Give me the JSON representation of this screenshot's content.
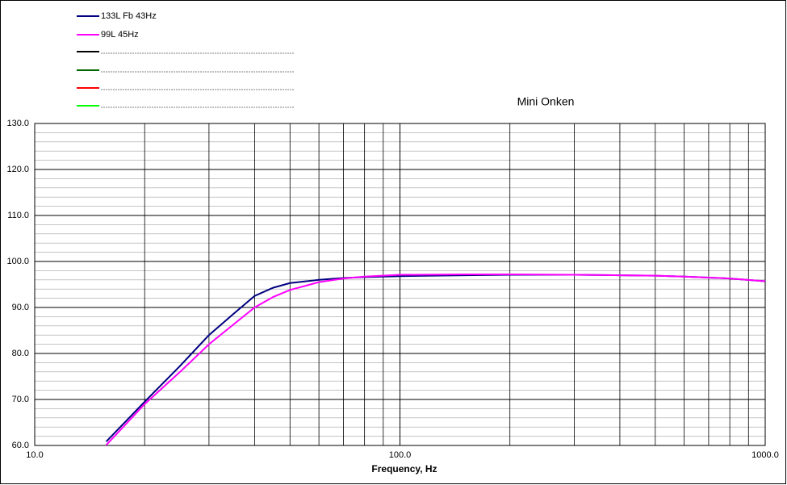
{
  "chart_data": {
    "type": "line",
    "title": "Mini Onken",
    "x_label": "Frequency, Hz",
    "x": [
      15.7,
      20,
      25,
      30,
      35,
      40,
      45,
      50,
      60,
      70,
      80,
      100,
      150,
      200,
      300,
      400,
      500,
      600,
      700,
      800,
      1000
    ],
    "series": [
      {
        "name": "133L Fb 43Hz",
        "color": "#000080",
        "values": [
          60.85,
          69.5,
          77.3,
          84,
          88.6,
          92.5,
          94.3,
          95.3,
          96,
          96.4,
          96.6,
          96.8,
          97,
          97.1,
          97.1,
          97,
          96.9,
          96.7,
          96.5,
          96.3,
          95.7
        ]
      },
      {
        "name": "99L 45Hz",
        "color": "#ff00ff",
        "values": [
          60.1,
          69,
          76,
          82,
          86.3,
          90,
          92.3,
          93.8,
          95.5,
          96.3,
          96.7,
          97.1,
          97.2,
          97.2,
          97.1,
          97,
          96.9,
          96.7,
          96.5,
          96.3,
          95.7
        ]
      }
    ],
    "x_scale": "log",
    "xlim": [
      10,
      1000
    ],
    "xticks": [
      {
        "value": 10,
        "label": "10.0"
      },
      {
        "value": 100,
        "label": "100.0"
      },
      {
        "value": 1000,
        "label": "1000.0"
      }
    ],
    "xminorticks": [
      20,
      30,
      40,
      50,
      60,
      70,
      80,
      90,
      200,
      300,
      400,
      500,
      600,
      700,
      800,
      900
    ],
    "ylim": [
      60,
      130
    ],
    "yticks": [
      {
        "value": 60,
        "label": "60.0"
      },
      {
        "value": 70,
        "label": "70.0"
      },
      {
        "value": 80,
        "label": "80.0"
      },
      {
        "value": 90,
        "label": "90.0"
      },
      {
        "value": 100,
        "label": "100.0"
      },
      {
        "value": 110,
        "label": "110.0"
      },
      {
        "value": 120,
        "label": "120.0"
      },
      {
        "value": 130,
        "label": "130.0"
      }
    ],
    "yminorticks": [
      62,
      64,
      66,
      68,
      72,
      74,
      76,
      78,
      82,
      84,
      86,
      88,
      92,
      94,
      96,
      98,
      102,
      104,
      106,
      108,
      112,
      114,
      116,
      118,
      122,
      124,
      126,
      128
    ],
    "grid": true
  }
}
